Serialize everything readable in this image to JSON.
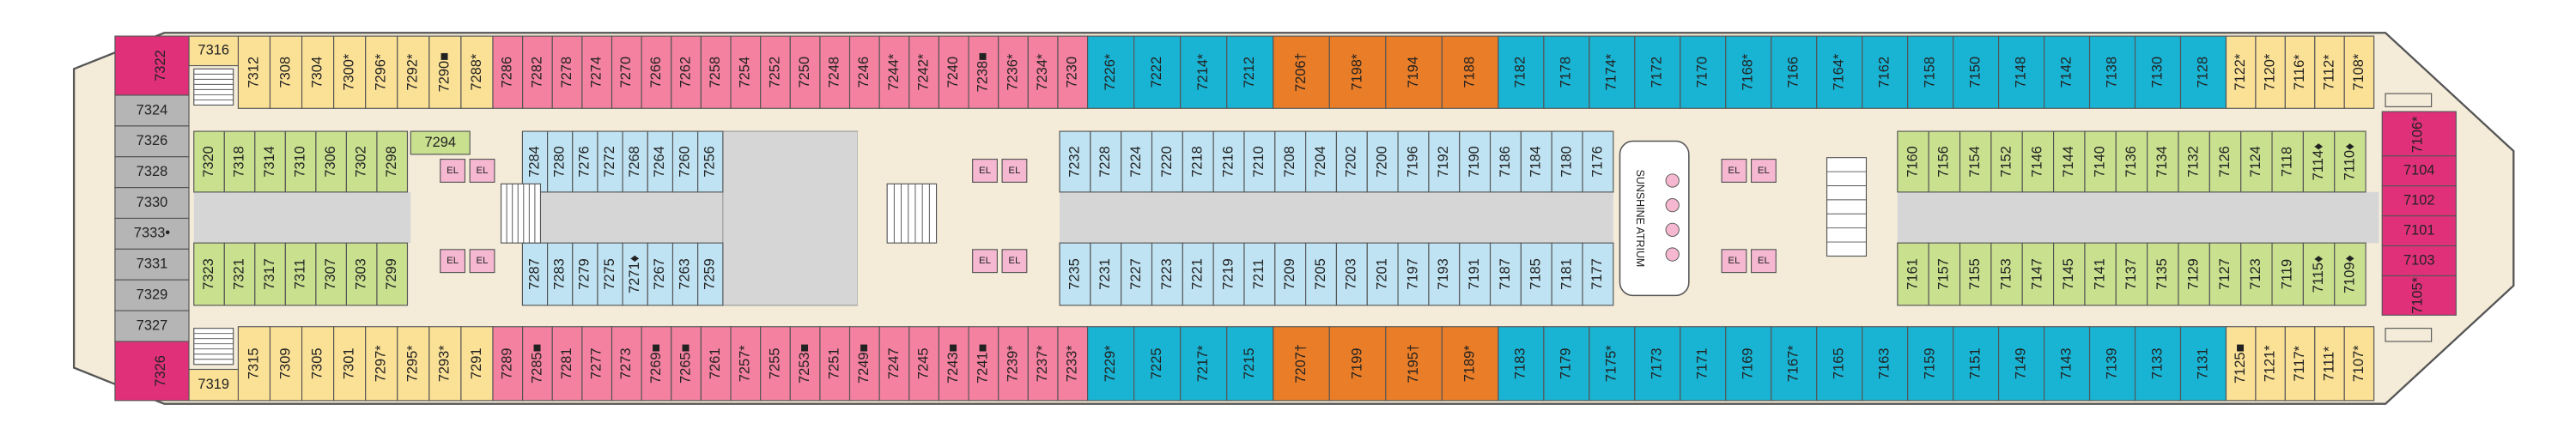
{
  "aft": {
    "top_corner": "7322",
    "bottom_corner": "7326",
    "stack": [
      "7324",
      "7326",
      "7328",
      "7330",
      "7333•",
      "7331",
      "7329",
      "7327"
    ]
  },
  "outer_top": {
    "corner": "7316",
    "groups": [
      {
        "color": "#fbe196",
        "cabins": [
          "7312",
          "7308",
          "7304",
          "7300*",
          "7296*",
          "7292*",
          "7290■",
          "7288*"
        ]
      },
      {
        "color": "#f3819f",
        "cabins": [
          "7286",
          "7282",
          "7278",
          "7274",
          "7270",
          "7266",
          "7262",
          "7258",
          "7254",
          "7252",
          "7250",
          "7248",
          "7246",
          "7244*",
          "7242*",
          "7240",
          "7238■",
          "7236*",
          "7234*",
          "7230"
        ]
      },
      {
        "color": "#19b3d3",
        "cabins": [
          "7226*",
          "7222",
          "7214*",
          "7212"
        ]
      },
      {
        "color": "#ea7d27",
        "cabins": [
          "7206†",
          "7198*",
          "7194",
          "7188"
        ]
      },
      {
        "color": "#19b3d3",
        "cabins": [
          "7182",
          "7178",
          "7174*",
          "7172",
          "7170",
          "7168*",
          "7166",
          "7164*",
          "7162",
          "7158",
          "7150",
          "7148",
          "7142",
          "7138",
          "7130",
          "7128"
        ]
      },
      {
        "color": "#fbe196",
        "cabins": [
          "7122*",
          "7120*",
          "7116*",
          "7112*",
          "7108*"
        ]
      }
    ]
  },
  "outer_bottom": {
    "corner": "7319",
    "groups": [
      {
        "color": "#fbe196",
        "cabins": [
          "7315",
          "7309",
          "7305",
          "7301",
          "7297*",
          "7295*",
          "7293*",
          "7291"
        ]
      },
      {
        "color": "#f3819f",
        "cabins": [
          "7289",
          "7285■",
          "7281",
          "7277",
          "7273",
          "7269■",
          "7265■",
          "7261",
          "7257*",
          "7255",
          "7253■",
          "7251",
          "7249■",
          "7247",
          "7245",
          "7243■",
          "7241■",
          "7239*",
          "7237*",
          "7233*"
        ]
      },
      {
        "color": "#19b3d3",
        "cabins": [
          "7229*",
          "7225",
          "7217*",
          "7215"
        ]
      },
      {
        "color": "#ea7d27",
        "cabins": [
          "7207†",
          "7199",
          "7195†",
          "7189*"
        ]
      },
      {
        "color": "#19b3d3",
        "cabins": [
          "7183",
          "7179",
          "7175*",
          "7173",
          "7171",
          "7169",
          "7167*",
          "7165",
          "7163",
          "7159",
          "7151",
          "7149",
          "7143",
          "7139",
          "7133",
          "7131"
        ]
      },
      {
        "color": "#fbe196",
        "cabins": [
          "7125■",
          "7121*",
          "7117*",
          "7111*",
          "7107*"
        ]
      }
    ]
  },
  "inner_top": {
    "side_cabin": "7294",
    "groups": [
      {
        "color": "#c9e08f",
        "cabins": [
          "7320",
          "7318",
          "7314",
          "7310",
          "7306",
          "7302",
          "7298"
        ]
      },
      {
        "color": "#bfe3f3",
        "cabins": [
          "7284",
          "7280",
          "7276",
          "7272",
          "7268",
          "7264",
          "7260",
          "7256"
        ]
      },
      {
        "color": "#bfe3f3",
        "cabins": [
          "7232",
          "7228",
          "7224",
          "7220",
          "7218",
          "7216",
          "7210",
          "7208",
          "7204",
          "7202",
          "7200",
          "7196",
          "7192",
          "7190",
          "7186",
          "7184",
          "7180",
          "7176"
        ]
      },
      {
        "color": "#c9e08f",
        "cabins": [
          "7160",
          "7156",
          "7154",
          "7152",
          "7146",
          "7144",
          "7140",
          "7136",
          "7134",
          "7132",
          "7126",
          "7124",
          "7118",
          "7114♦",
          "7110♦"
        ]
      }
    ]
  },
  "inner_bottom": {
    "groups": [
      {
        "color": "#c9e08f",
        "cabins": [
          "7323",
          "7321",
          "7317",
          "7311",
          "7307",
          "7303",
          "7299"
        ]
      },
      {
        "color": "#bfe3f3",
        "cabins": [
          "7287",
          "7283",
          "7279",
          "7275",
          "7271♦",
          "7267",
          "7263",
          "7259"
        ]
      },
      {
        "color": "#bfe3f3",
        "cabins": [
          "7235",
          "7231",
          "7227",
          "7223",
          "7221",
          "7219",
          "7211",
          "7209",
          "7205",
          "7203",
          "7201",
          "7197",
          "7193",
          "7191",
          "7187",
          "7185",
          "7181",
          "7177"
        ]
      },
      {
        "color": "#c9e08f",
        "cabins": [
          "7161",
          "7157",
          "7155",
          "7153",
          "7147",
          "7145",
          "7141",
          "7137",
          "7135",
          "7129",
          "7127",
          "7123",
          "7119",
          "7115♦",
          "7109♦"
        ]
      }
    ]
  },
  "bow": {
    "top": "7106*",
    "bottom": "7105*",
    "stack": [
      "7104",
      "7102",
      "7101",
      "7103"
    ]
  },
  "atrium": "SUNSHINE ATRIUM",
  "elevators": [
    "EL",
    "EL",
    "EL",
    "EL",
    "EL",
    "EL",
    "EL",
    "EL",
    "EL",
    "EL",
    "EL",
    "EL"
  ]
}
